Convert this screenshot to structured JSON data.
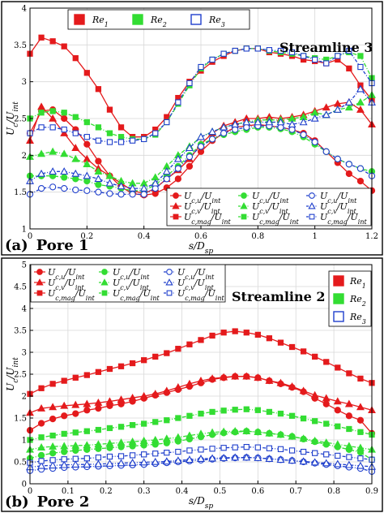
{
  "chart_data": [
    {
      "type": "line",
      "panel_label": "(a)",
      "panel_name": "Pore 1",
      "title": "Streamline 3",
      "xlabel": "s/D_sp",
      "ylabel": "U_c/U_int",
      "xlim": [
        0,
        1.2
      ],
      "ylim": [
        1,
        4
      ],
      "xticks": [
        0,
        0.2,
        0.4,
        0.6,
        0.8,
        1,
        1.2
      ],
      "xtick_labels": [
        "0",
        "0.2",
        "0.4",
        "0.6",
        "0.8",
        "1",
        "1.2"
      ],
      "yticks": [
        1,
        1.5,
        2,
        2.5,
        3,
        3.5,
        4
      ],
      "ytick_labels": [
        "1",
        "1.5",
        "2",
        "2.5",
        "3",
        "3.5",
        "4"
      ],
      "grid": true,
      "top_legend": [
        {
          "label": "Re",
          "sub": "1",
          "color": "#e41a1c",
          "filled": true
        },
        {
          "label": "Re",
          "sub": "2",
          "color": "#33dd33",
          "filled": true
        },
        {
          "label": "Re",
          "sub": "3",
          "color": "#1f3fcc",
          "filled": false
        }
      ],
      "series_legend": [
        {
          "text": "U",
          "sub": "c,u",
          "color": "#e41a1c",
          "marker": "circle",
          "filled": true,
          "dash": "solid"
        },
        {
          "text": "U",
          "sub": "c,u",
          "color": "#33dd33",
          "marker": "circle",
          "filled": true,
          "dash": "dashdot"
        },
        {
          "text": "U",
          "sub": "c,u",
          "color": "#1f3fcc",
          "marker": "circle",
          "filled": false,
          "dash": "dashdot"
        },
        {
          "text": "U",
          "sub": "c,v",
          "color": "#e41a1c",
          "marker": "triangle",
          "filled": true,
          "dash": "solid"
        },
        {
          "text": "U",
          "sub": "c,v",
          "color": "#33dd33",
          "marker": "triangle",
          "filled": true,
          "dash": "dashdot"
        },
        {
          "text": "U",
          "sub": "c,v",
          "color": "#1f3fcc",
          "marker": "triangle",
          "filled": false,
          "dash": "dashdot"
        },
        {
          "text": "U",
          "sub": "c,mag",
          "color": "#e41a1c",
          "marker": "square",
          "filled": true,
          "dash": "solid"
        },
        {
          "text": "U",
          "sub": "c,mag",
          "color": "#33dd33",
          "marker": "square",
          "filled": true,
          "dash": "dashdot"
        },
        {
          "text": "U",
          "sub": "c,mag",
          "color": "#1f3fcc",
          "marker": "square",
          "filled": false,
          "dash": "dashdot"
        }
      ],
      "denominator": "U",
      "denominator_sub": "int",
      "x": [
        0,
        0.04,
        0.08,
        0.12,
        0.16,
        0.2,
        0.24,
        0.28,
        0.32,
        0.36,
        0.4,
        0.44,
        0.48,
        0.52,
        0.56,
        0.6,
        0.64,
        0.68,
        0.72,
        0.76,
        0.8,
        0.84,
        0.88,
        0.92,
        0.96,
        1.0,
        1.04,
        1.08,
        1.12,
        1.16,
        1.2
      ],
      "series": [
        {
          "re": 1,
          "component": "u",
          "values": [
            2.3,
            2.6,
            2.62,
            2.5,
            2.35,
            2.15,
            1.92,
            1.72,
            1.57,
            1.48,
            1.46,
            1.48,
            1.56,
            1.68,
            1.85,
            2.05,
            2.2,
            2.3,
            2.38,
            2.4,
            2.42,
            2.4,
            2.38,
            2.35,
            2.3,
            2.2,
            2.05,
            1.9,
            1.75,
            1.65,
            1.52
          ]
        },
        {
          "re": 1,
          "component": "v",
          "values": [
            2.2,
            2.66,
            2.5,
            2.3,
            2.1,
            1.95,
            1.82,
            1.72,
            1.62,
            1.52,
            1.48,
            1.55,
            1.68,
            1.8,
            1.95,
            2.15,
            2.3,
            2.4,
            2.45,
            2.5,
            2.5,
            2.52,
            2.5,
            2.52,
            2.55,
            2.6,
            2.65,
            2.7,
            2.72,
            2.62,
            2.42
          ]
        },
        {
          "re": 1,
          "component": "mag",
          "values": [
            3.38,
            3.6,
            3.55,
            3.48,
            3.32,
            3.12,
            2.9,
            2.62,
            2.38,
            2.25,
            2.25,
            2.35,
            2.52,
            2.78,
            3.0,
            3.15,
            3.27,
            3.35,
            3.42,
            3.45,
            3.45,
            3.4,
            3.38,
            3.35,
            3.3,
            3.28,
            3.25,
            3.3,
            3.18,
            2.95,
            2.75
          ]
        },
        {
          "re": 2,
          "component": "u",
          "values": [
            1.72,
            1.72,
            1.72,
            1.7,
            1.68,
            1.65,
            1.6,
            1.58,
            1.55,
            1.52,
            1.52,
            1.6,
            1.72,
            1.85,
            2.0,
            2.15,
            2.22,
            2.28,
            2.32,
            2.35,
            2.38,
            2.38,
            2.36,
            2.32,
            2.25,
            2.15,
            2.05,
            1.95,
            1.88,
            1.82,
            1.78
          ]
        },
        {
          "re": 2,
          "component": "v",
          "values": [
            1.98,
            2.02,
            2.05,
            2.02,
            1.95,
            1.88,
            1.78,
            1.72,
            1.65,
            1.62,
            1.62,
            1.7,
            1.85,
            2.0,
            2.12,
            2.25,
            2.32,
            2.38,
            2.42,
            2.45,
            2.48,
            2.48,
            2.48,
            2.5,
            2.52,
            2.58,
            2.55,
            2.62,
            2.65,
            2.72,
            2.82
          ]
        },
        {
          "re": 2,
          "component": "mag",
          "values": [
            2.5,
            2.58,
            2.6,
            2.58,
            2.52,
            2.45,
            2.38,
            2.3,
            2.25,
            2.22,
            2.22,
            2.28,
            2.45,
            2.7,
            2.95,
            3.18,
            3.3,
            3.38,
            3.42,
            3.45,
            3.45,
            3.42,
            3.4,
            3.38,
            3.35,
            3.32,
            3.3,
            3.35,
            3.4,
            3.35,
            3.05
          ]
        },
        {
          "re": 3,
          "component": "u",
          "values": [
            1.47,
            1.55,
            1.57,
            1.55,
            1.53,
            1.52,
            1.5,
            1.48,
            1.47,
            1.47,
            1.47,
            1.55,
            1.68,
            1.82,
            1.98,
            2.12,
            2.22,
            2.3,
            2.35,
            2.38,
            2.4,
            2.4,
            2.38,
            2.35,
            2.28,
            2.18,
            2.05,
            1.95,
            1.88,
            1.82,
            1.72
          ]
        },
        {
          "re": 3,
          "component": "v",
          "values": [
            1.65,
            1.75,
            1.78,
            1.78,
            1.75,
            1.72,
            1.68,
            1.62,
            1.58,
            1.55,
            1.55,
            1.62,
            1.78,
            1.95,
            2.1,
            2.25,
            2.32,
            2.38,
            2.42,
            2.45,
            2.45,
            2.45,
            2.45,
            2.42,
            2.45,
            2.5,
            2.55,
            2.62,
            2.72,
            2.9,
            2.72
          ]
        },
        {
          "re": 3,
          "component": "mag",
          "values": [
            2.3,
            2.38,
            2.38,
            2.35,
            2.3,
            2.25,
            2.2,
            2.18,
            2.18,
            2.2,
            2.22,
            2.3,
            2.45,
            2.72,
            2.98,
            3.2,
            3.3,
            3.38,
            3.42,
            3.45,
            3.45,
            3.43,
            3.42,
            3.4,
            3.35,
            3.3,
            3.25,
            3.35,
            3.42,
            3.2,
            2.98
          ]
        }
      ]
    },
    {
      "type": "line",
      "panel_label": "(b)",
      "panel_name": "Pore 2",
      "title": "Streamline 2",
      "xlabel": "s/D_sp",
      "ylabel": "U_c/U_int",
      "xlim": [
        0,
        0.9
      ],
      "ylim": [
        0,
        5
      ],
      "xticks": [
        0,
        0.1,
        0.2,
        0.3,
        0.4,
        0.5,
        0.6,
        0.7,
        0.8,
        0.9
      ],
      "xtick_labels": [
        "0",
        "0.1",
        "0.2",
        "0.3",
        "0.4",
        "0.5",
        "0.6",
        "0.7",
        "0.8",
        "0.9"
      ],
      "yticks": [
        0,
        0.5,
        1,
        1.5,
        2,
        2.5,
        3,
        3.5,
        4,
        4.5,
        5
      ],
      "ytick_labels": [
        "0",
        "0.5",
        "1",
        "1.5",
        "2",
        "2.5",
        "3",
        "3.5",
        "4",
        "4.5",
        "5"
      ],
      "grid": true,
      "top_legend": [
        {
          "label": "Re",
          "sub": "1",
          "color": "#e41a1c",
          "filled": true
        },
        {
          "label": "Re",
          "sub": "2",
          "color": "#33dd33",
          "filled": true
        },
        {
          "label": "Re",
          "sub": "3",
          "color": "#1f3fcc",
          "filled": false
        }
      ],
      "series_legend": [
        {
          "text": "U",
          "sub": "c,u",
          "color": "#e41a1c",
          "marker": "circle",
          "filled": true,
          "dash": "solid"
        },
        {
          "text": "U",
          "sub": "c,u",
          "color": "#33dd33",
          "marker": "circle",
          "filled": true,
          "dash": "dashdot"
        },
        {
          "text": "U",
          "sub": "c,u",
          "color": "#1f3fcc",
          "marker": "circle",
          "filled": false,
          "dash": "dashdot"
        },
        {
          "text": "U",
          "sub": "c,v",
          "color": "#e41a1c",
          "marker": "triangle",
          "filled": true,
          "dash": "solid"
        },
        {
          "text": "U",
          "sub": "c,v",
          "color": "#33dd33",
          "marker": "triangle",
          "filled": true,
          "dash": "dashdot"
        },
        {
          "text": "U",
          "sub": "c,v",
          "color": "#1f3fcc",
          "marker": "triangle",
          "filled": false,
          "dash": "dashdot"
        },
        {
          "text": "U",
          "sub": "c,mag",
          "color": "#e41a1c",
          "marker": "square",
          "filled": true,
          "dash": "solid"
        },
        {
          "text": "U",
          "sub": "c,mag",
          "color": "#33dd33",
          "marker": "square",
          "filled": true,
          "dash": "dashdot"
        },
        {
          "text": "U",
          "sub": "c,mag",
          "color": "#1f3fcc",
          "marker": "square",
          "filled": false,
          "dash": "dashdot"
        }
      ],
      "denominator": "U",
      "denominator_sub": "int",
      "x": [
        0,
        0.03,
        0.06,
        0.09,
        0.12,
        0.15,
        0.18,
        0.21,
        0.24,
        0.27,
        0.3,
        0.33,
        0.36,
        0.39,
        0.42,
        0.45,
        0.48,
        0.51,
        0.54,
        0.57,
        0.6,
        0.63,
        0.66,
        0.69,
        0.72,
        0.75,
        0.78,
        0.81,
        0.84,
        0.87,
        0.9
      ],
      "series": [
        {
          "re": 1,
          "component": "u",
          "values": [
            1.22,
            1.38,
            1.48,
            1.55,
            1.6,
            1.68,
            1.72,
            1.78,
            1.82,
            1.88,
            1.95,
            2.02,
            2.08,
            2.15,
            2.22,
            2.3,
            2.38,
            2.42,
            2.45,
            2.45,
            2.42,
            2.35,
            2.28,
            2.2,
            2.1,
            1.95,
            1.82,
            1.68,
            1.55,
            1.45,
            1.15
          ]
        },
        {
          "re": 1,
          "component": "v",
          "values": [
            1.62,
            1.72,
            1.75,
            1.78,
            1.8,
            1.82,
            1.85,
            1.88,
            1.92,
            1.96,
            2.0,
            2.05,
            2.12,
            2.2,
            2.28,
            2.35,
            2.4,
            2.43,
            2.45,
            2.45,
            2.42,
            2.35,
            2.3,
            2.22,
            2.12,
            2.02,
            1.95,
            1.88,
            1.82,
            1.75,
            1.68
          ]
        },
        {
          "re": 1,
          "component": "mag",
          "values": [
            2.05,
            2.18,
            2.28,
            2.35,
            2.42,
            2.48,
            2.55,
            2.62,
            2.68,
            2.75,
            2.82,
            2.9,
            2.98,
            3.08,
            3.18,
            3.28,
            3.38,
            3.45,
            3.48,
            3.45,
            3.4,
            3.32,
            3.22,
            3.12,
            3.02,
            2.9,
            2.78,
            2.65,
            2.52,
            2.4,
            2.3
          ]
        },
        {
          "re": 2,
          "component": "u",
          "values": [
            0.58,
            0.65,
            0.7,
            0.73,
            0.76,
            0.78,
            0.8,
            0.82,
            0.84,
            0.86,
            0.88,
            0.9,
            0.93,
            0.97,
            1.02,
            1.07,
            1.12,
            1.16,
            1.18,
            1.2,
            1.18,
            1.15,
            1.12,
            1.08,
            1.02,
            0.96,
            0.9,
            0.84,
            0.78,
            0.72,
            0.55
          ]
        },
        {
          "re": 2,
          "component": "v",
          "values": [
            0.78,
            0.83,
            0.85,
            0.86,
            0.87,
            0.88,
            0.9,
            0.92,
            0.94,
            0.96,
            0.98,
            1.0,
            1.03,
            1.06,
            1.1,
            1.14,
            1.17,
            1.19,
            1.2,
            1.2,
            1.18,
            1.15,
            1.12,
            1.08,
            1.03,
            0.98,
            0.94,
            0.9,
            0.86,
            0.82,
            0.78
          ]
        },
        {
          "re": 2,
          "component": "mag",
          "values": [
            1.0,
            1.06,
            1.1,
            1.14,
            1.17,
            1.2,
            1.23,
            1.27,
            1.3,
            1.34,
            1.37,
            1.41,
            1.45,
            1.5,
            1.55,
            1.6,
            1.64,
            1.67,
            1.69,
            1.7,
            1.68,
            1.64,
            1.6,
            1.55,
            1.49,
            1.43,
            1.37,
            1.31,
            1.25,
            1.18,
            1.12
          ]
        },
        {
          "re": 3,
          "component": "u",
          "values": [
            0.3,
            0.33,
            0.35,
            0.37,
            0.38,
            0.39,
            0.4,
            0.41,
            0.42,
            0.43,
            0.44,
            0.46,
            0.48,
            0.5,
            0.52,
            0.54,
            0.56,
            0.58,
            0.59,
            0.6,
            0.59,
            0.57,
            0.55,
            0.53,
            0.5,
            0.47,
            0.44,
            0.41,
            0.38,
            0.35,
            0.28
          ]
        },
        {
          "re": 3,
          "component": "v",
          "values": [
            0.38,
            0.41,
            0.42,
            0.43,
            0.44,
            0.44,
            0.45,
            0.46,
            0.47,
            0.48,
            0.49,
            0.5,
            0.51,
            0.53,
            0.55,
            0.57,
            0.58,
            0.59,
            0.6,
            0.6,
            0.59,
            0.57,
            0.55,
            0.53,
            0.51,
            0.49,
            0.47,
            0.45,
            0.43,
            0.41,
            0.39
          ]
        },
        {
          "re": 3,
          "component": "mag",
          "values": [
            0.48,
            0.52,
            0.54,
            0.56,
            0.57,
            0.58,
            0.6,
            0.62,
            0.63,
            0.65,
            0.67,
            0.69,
            0.71,
            0.73,
            0.76,
            0.78,
            0.8,
            0.82,
            0.83,
            0.84,
            0.83,
            0.81,
            0.79,
            0.76,
            0.73,
            0.7,
            0.67,
            0.64,
            0.61,
            0.58,
            0.55
          ]
        }
      ]
    }
  ]
}
